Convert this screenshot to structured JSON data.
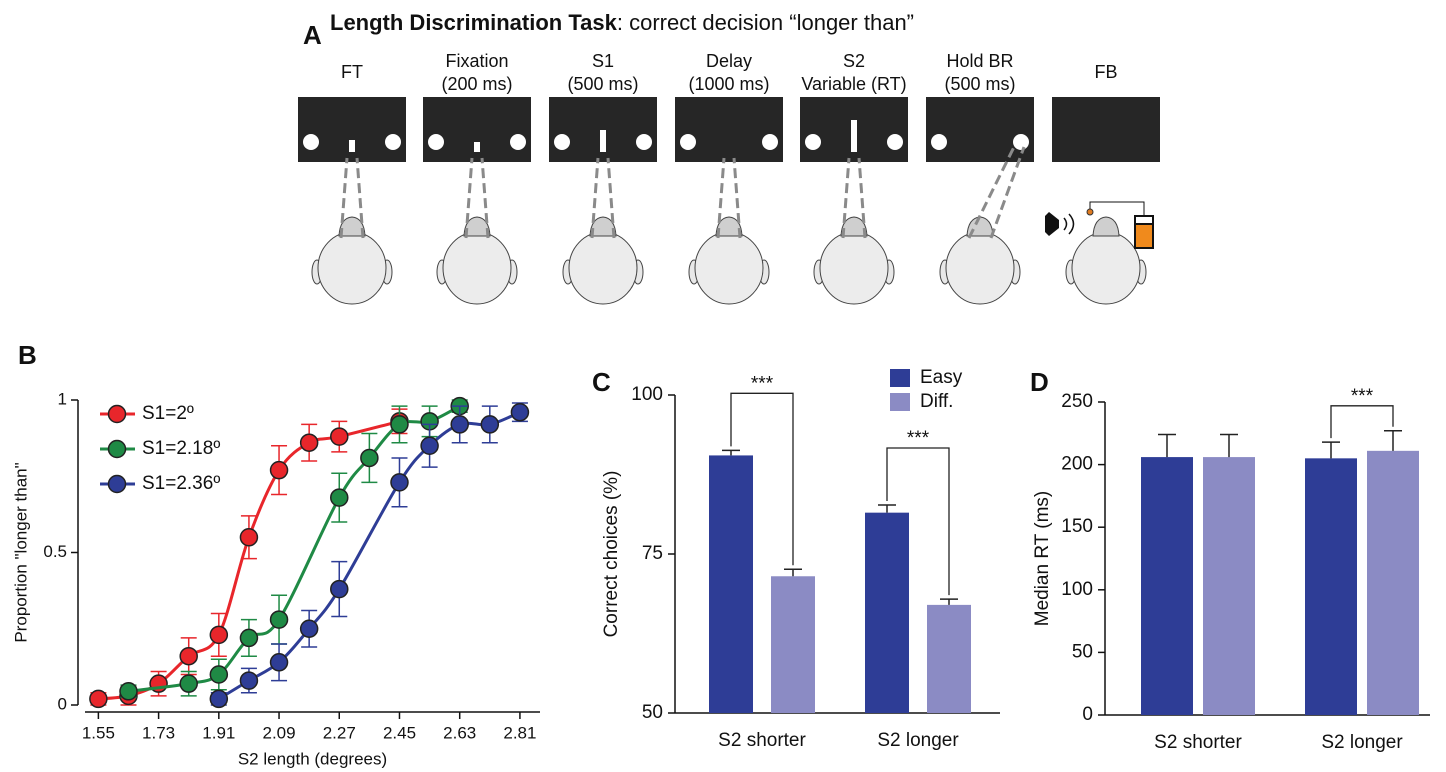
{
  "panel_a": {
    "label": "A",
    "title_bold": "Length Discrimination Task",
    "title_rest": ": correct decision “longer than”",
    "stages": [
      {
        "lines": [
          "FT"
        ]
      },
      {
        "lines": [
          "Fixation",
          "(200 ms)"
        ]
      },
      {
        "lines": [
          "S1",
          "(500 ms)"
        ]
      },
      {
        "lines": [
          "Delay",
          "(1000 ms)"
        ]
      },
      {
        "lines": [
          "S2",
          "Variable (RT)"
        ]
      },
      {
        "lines": [
          "Hold BR",
          "(500 ms)"
        ]
      },
      {
        "lines": [
          "FB"
        ]
      }
    ]
  },
  "chart_data": [
    {
      "panel_label": "B",
      "type": "line",
      "xlabel": "S2 length (degrees)",
      "ylabel": "Proportion \"longer than\"",
      "xlim": [
        1.51,
        2.87
      ],
      "ylim": [
        0,
        1
      ],
      "xticks": [
        1.55,
        1.73,
        1.91,
        2.09,
        2.27,
        2.45,
        2.63,
        2.81
      ],
      "yticks": [
        0,
        0.5,
        1
      ],
      "legend": "upper left",
      "series": [
        {
          "name": "S1=2º",
          "color": "#e8262b",
          "x": [
            1.55,
            1.64,
            1.73,
            1.82,
            1.91,
            2.0,
            2.09,
            2.18,
            2.27,
            2.45
          ],
          "values": [
            0.02,
            0.03,
            0.07,
            0.16,
            0.23,
            0.55,
            0.77,
            0.86,
            0.88,
            0.93
          ],
          "errors": [
            0.02,
            0.03,
            0.04,
            0.06,
            0.07,
            0.07,
            0.08,
            0.06,
            0.05,
            0.04
          ]
        },
        {
          "name": "S1=2.18º",
          "color": "#1f8a45",
          "x": [
            1.64,
            1.82,
            1.91,
            2.0,
            2.09,
            2.27,
            2.36,
            2.45,
            2.54,
            2.63
          ],
          "values": [
            0.045,
            0.07,
            0.1,
            0.22,
            0.28,
            0.68,
            0.81,
            0.92,
            0.93,
            0.98
          ],
          "errors": [
            0.02,
            0.04,
            0.05,
            0.06,
            0.08,
            0.08,
            0.08,
            0.06,
            0.05,
            0.02
          ]
        },
        {
          "name": "S1=2.36º",
          "color": "#2e3d96",
          "x": [
            1.91,
            2.0,
            2.09,
            2.18,
            2.27,
            2.45,
            2.54,
            2.63,
            2.72,
            2.81
          ],
          "values": [
            0.02,
            0.08,
            0.14,
            0.25,
            0.38,
            0.73,
            0.85,
            0.92,
            0.92,
            0.96
          ],
          "errors": [
            0.02,
            0.04,
            0.06,
            0.06,
            0.09,
            0.08,
            0.07,
            0.06,
            0.06,
            0.03
          ]
        }
      ]
    },
    {
      "panel_label": "C",
      "type": "bar",
      "ylabel": "Correct choices  (%)",
      "categories": [
        "S2 shorter",
        "S2 longer"
      ],
      "ylim": [
        50,
        100
      ],
      "yticks": [
        50,
        75,
        100
      ],
      "legend": "upper right",
      "series": [
        {
          "name": "Easy",
          "color": "#2e3d96",
          "values": [
            90.5,
            81.5
          ],
          "errors": [
            0.8,
            1.2
          ]
        },
        {
          "name": "Diff.",
          "color": "#8b8bc4",
          "values": [
            71.5,
            67
          ],
          "errors": [
            1.1,
            0.9
          ]
        }
      ],
      "significance": [
        "***",
        "***"
      ]
    },
    {
      "panel_label": "D",
      "type": "bar",
      "ylabel": "Median RT (ms)",
      "categories": [
        "S2 shorter",
        "S2 longer"
      ],
      "ylim": [
        0,
        250
      ],
      "yticks": [
        0,
        50,
        100,
        150,
        200,
        250
      ],
      "series": [
        {
          "color": "#2e3d96",
          "values": [
            206,
            205
          ],
          "errors": [
            18,
            13
          ]
        },
        {
          "color": "#8b8bc4",
          "values": [
            206,
            211
          ],
          "errors": [
            18,
            16
          ]
        }
      ],
      "significance": [
        null,
        "***"
      ]
    }
  ]
}
